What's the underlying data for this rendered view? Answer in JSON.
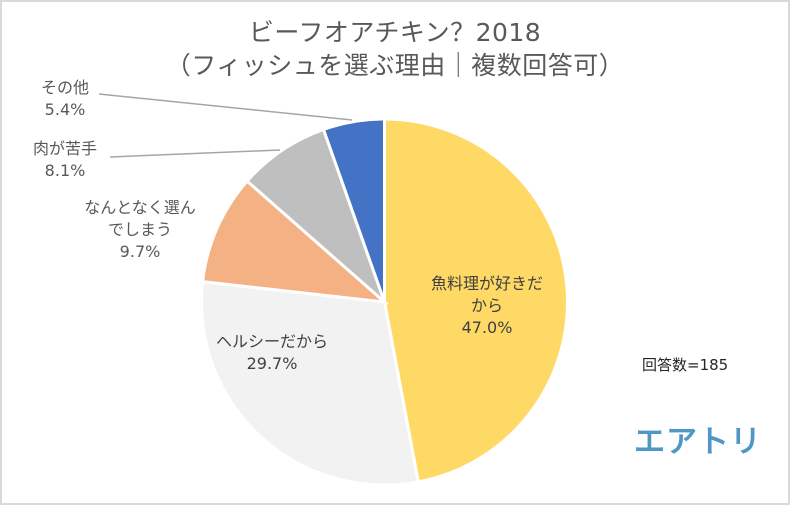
{
  "chart_data": {
    "type": "pie",
    "title": "ビーフオアチキン？2018",
    "subtitle": "（フィッシュを選ぶ理由｜複数回答可）",
    "start": "top",
    "direction": "clockwise",
    "unit": "%",
    "slices": [
      {
        "label": "魚料理が好きだから",
        "label_lines": [
          "魚料理が好きだ",
          "から"
        ],
        "value": 47.0,
        "value_text": "47.0%",
        "color": "#ffd966",
        "label_position": "inside"
      },
      {
        "label": "ヘルシーだから",
        "label_lines": [
          "ヘルシーだから"
        ],
        "value": 29.7,
        "value_text": "29.7%",
        "color": "#f2f2f2",
        "label_position": "inside"
      },
      {
        "label": "なんとなく選んでしまう",
        "label_lines": [
          "なんとなく選ん",
          "でしまう"
        ],
        "value": 9.7,
        "value_text": "9.7%",
        "color": "#f4b183",
        "label_position": "outside"
      },
      {
        "label": "肉が苦手",
        "label_lines": [
          "肉が苦手"
        ],
        "value": 8.1,
        "value_text": "8.1%",
        "color": "#bfbfbf",
        "label_position": "outside-leader"
      },
      {
        "label": "その他",
        "label_lines": [
          "その他"
        ],
        "value": 5.4,
        "value_text": "5.4%",
        "color": "#4472c4",
        "label_position": "outside-leader"
      }
    ],
    "annotation": "回答数=185",
    "n": 185
  },
  "header": {
    "title": "ビーフオアチキン？2018",
    "subtitle": "（フィッシュを選ぶ理由｜複数回答可）"
  },
  "note": "回答数=185",
  "logo": "エアトリ"
}
